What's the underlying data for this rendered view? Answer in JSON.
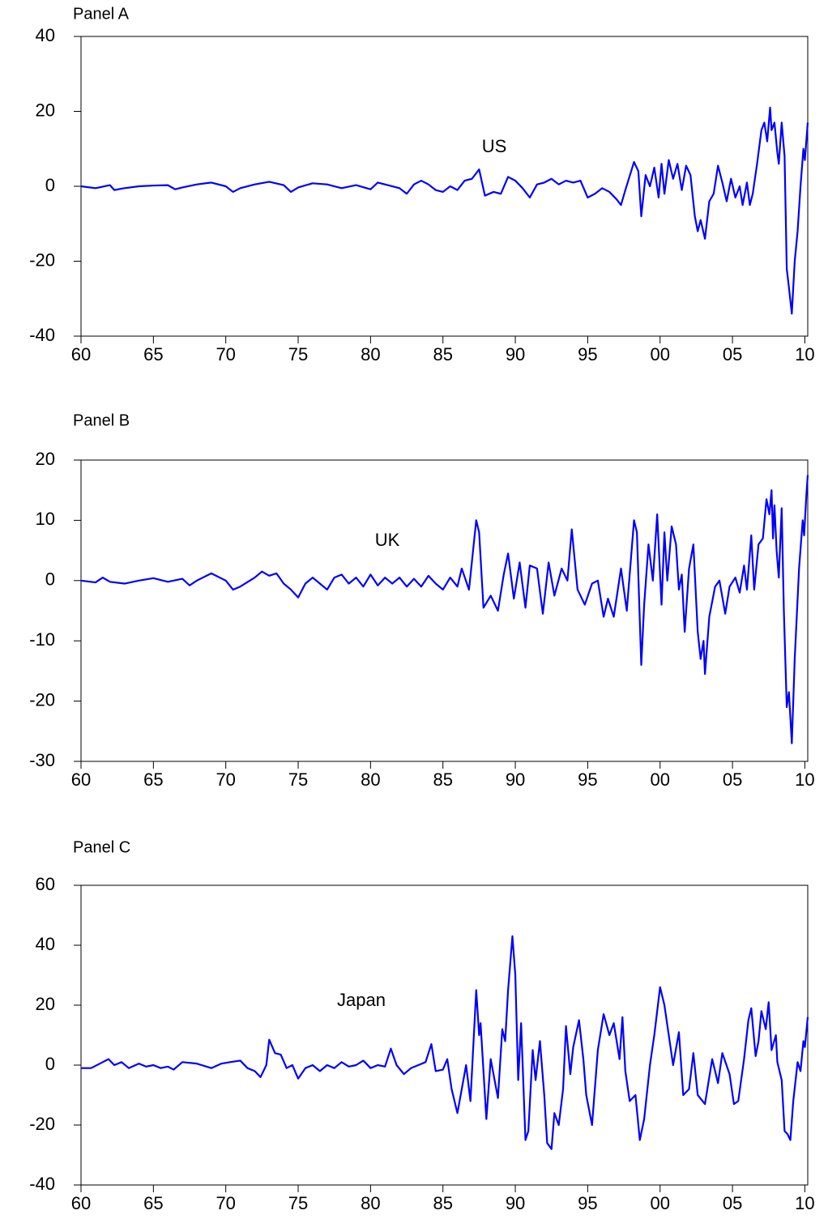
{
  "chart_data": [
    {
      "type": "line",
      "title": "Panel A",
      "annotation": "US",
      "color": "#0000ff",
      "x": [
        1960,
        1961,
        1962,
        1962.3,
        1963,
        1964,
        1965,
        1966,
        1966.5,
        1967,
        1968,
        1969,
        1970,
        1970.5,
        1971,
        1972,
        1973,
        1974,
        1974.5,
        1975,
        1976,
        1977,
        1978,
        1979,
        1980,
        1980.5,
        1981,
        1982,
        1982.5,
        1983,
        1983.5,
        1984,
        1984.5,
        1985,
        1985.5,
        1986,
        1986.5,
        1987,
        1987.5,
        1987.9,
        1988.5,
        1989,
        1989.5,
        1990,
        1990.5,
        1991,
        1991.5,
        1992,
        1992.5,
        1993,
        1993.5,
        1994,
        1994.5,
        1995,
        1995.5,
        1996,
        1996.5,
        1997,
        1997.3,
        1997.6,
        1998.2,
        1998.5,
        1998.7,
        1999,
        1999.3,
        1999.6,
        1999.9,
        2000.1,
        2000.3,
        2000.6,
        2000.9,
        2001.2,
        2001.5,
        2001.8,
        2002.1,
        2002.4,
        2002.6,
        2002.8,
        2003.1,
        2003.4,
        2003.7,
        2004,
        2004.3,
        2004.6,
        2004.9,
        2005.2,
        2005.5,
        2005.7,
        2006,
        2006.2,
        2006.4,
        2006.7,
        2007,
        2007.2,
        2007.4,
        2007.6,
        2007.7,
        2007.9,
        2008.1,
        2008.2,
        2008.4,
        2008.6,
        2008.75,
        2008.9,
        2009.1,
        2009.3,
        2009.5,
        2009.7,
        2009.9,
        2010,
        2010.2
      ],
      "values": [
        0,
        -0.5,
        0.3,
        -1,
        -0.5,
        0,
        0.2,
        0.3,
        -0.8,
        -0.3,
        0.5,
        1,
        0,
        -1.5,
        -0.5,
        0.5,
        1.2,
        0.3,
        -1.5,
        -0.3,
        0.8,
        0.5,
        -0.5,
        0.3,
        -0.8,
        1,
        0.5,
        -0.5,
        -2,
        0.5,
        1.5,
        0.5,
        -1,
        -1.5,
        0,
        -1,
        1.5,
        2,
        4.5,
        -2.5,
        -1.5,
        -2,
        2.5,
        1.5,
        -0.5,
        -3,
        0.5,
        1,
        2,
        0.5,
        1.5,
        1,
        1.5,
        -3,
        -2,
        -0.5,
        -1.5,
        -3.5,
        -5,
        -1,
        6.5,
        4,
        -8,
        3,
        0,
        5,
        -3,
        6,
        -2,
        7,
        2,
        6,
        -1,
        5.5,
        3,
        -8,
        -12,
        -9,
        -14,
        -4,
        -2,
        5.5,
        1,
        -4,
        2,
        -3,
        0,
        -5,
        1,
        -5,
        -2,
        6,
        15,
        17,
        12,
        21,
        15,
        17,
        9,
        6,
        17,
        8,
        -22,
        -27,
        -34,
        -20,
        -12,
        0,
        10,
        7,
        17
      ],
      "xlim": [
        1960,
        2010.2
      ],
      "ylim": [
        -40,
        40
      ],
      "yticks": [
        -40,
        -20,
        0,
        20,
        40
      ],
      "xticks": [
        {
          "value": 1960,
          "label": "60"
        },
        {
          "value": 1965,
          "label": "65"
        },
        {
          "value": 1970,
          "label": "70"
        },
        {
          "value": 1975,
          "label": "75"
        },
        {
          "value": 1980,
          "label": "80"
        },
        {
          "value": 1985,
          "label": "85"
        },
        {
          "value": 1990,
          "label": "90"
        },
        {
          "value": 1995,
          "label": "95"
        },
        {
          "value": 2000,
          "label": "00"
        },
        {
          "value": 2005,
          "label": "05"
        },
        {
          "value": 2010,
          "label": "10"
        }
      ]
    },
    {
      "type": "line",
      "title": "Panel B",
      "annotation": "UK",
      "color": "#0000ff",
      "x": [
        1960,
        1961,
        1961.5,
        1962,
        1963,
        1964,
        1965,
        1966,
        1967,
        1967.5,
        1968,
        1969,
        1970,
        1970.5,
        1971,
        1972,
        1972.5,
        1973,
        1973.5,
        1974,
        1974.5,
        1975,
        1975.5,
        1976,
        1976.5,
        1977,
        1977.5,
        1978,
        1978.5,
        1979,
        1979.5,
        1980,
        1980.5,
        1981,
        1981.5,
        1982,
        1982.5,
        1983,
        1983.5,
        1984,
        1984.5,
        1985,
        1985.5,
        1986,
        1986.3,
        1986.8,
        1987.3,
        1987.5,
        1987.8,
        1988.3,
        1988.8,
        1989.2,
        1989.5,
        1989.9,
        1990.3,
        1990.7,
        1991,
        1991.5,
        1991.9,
        1992.3,
        1992.7,
        1993.2,
        1993.6,
        1993.9,
        1994.3,
        1994.8,
        1995.3,
        1995.7,
        1996.1,
        1996.4,
        1996.8,
        1997.3,
        1997.7,
        1998.2,
        1998.4,
        1998.7,
        1998.9,
        1999.2,
        1999.5,
        1999.8,
        2000.1,
        2000.3,
        2000.5,
        2000.8,
        2001.1,
        2001.3,
        2001.5,
        2001.7,
        2002,
        2002.3,
        2002.6,
        2002.8,
        2003,
        2003.1,
        2003.4,
        2003.8,
        2004.1,
        2004.5,
        2004.8,
        2005.2,
        2005.5,
        2005.8,
        2006,
        2006.3,
        2006.5,
        2006.8,
        2007.1,
        2007.35,
        2007.55,
        2007.7,
        2007.8,
        2007.9,
        2008.05,
        2008.2,
        2008.4,
        2008.55,
        2008.75,
        2008.9,
        2009.1,
        2009.3,
        2009.6,
        2009.85,
        2009.95,
        2010.1,
        2010.2
      ],
      "values": [
        0,
        -0.3,
        0.5,
        -0.2,
        -0.5,
        0,
        0.4,
        -0.2,
        0.3,
        -0.8,
        0,
        1.2,
        0,
        -1.5,
        -1,
        0.5,
        1.5,
        0.8,
        1.2,
        -0.5,
        -1.5,
        -2.8,
        -0.5,
        0.5,
        -0.5,
        -1.5,
        0.5,
        1,
        -0.5,
        0.5,
        -1,
        1,
        -0.8,
        0.5,
        -0.5,
        0.5,
        -1,
        0.3,
        -1,
        0.8,
        -0.5,
        -1.5,
        0.5,
        -1,
        2,
        -1.5,
        10,
        8,
        -4.5,
        -2.5,
        -5,
        1,
        4.5,
        -3,
        3,
        -4.5,
        2.5,
        2,
        -5.5,
        3,
        -2.5,
        2,
        0,
        8.5,
        -1.5,
        -4,
        -0.5,
        0,
        -6,
        -3,
        -6,
        2,
        -5,
        10,
        8,
        -14,
        -4,
        6,
        0,
        11,
        -4,
        8,
        0,
        9,
        6,
        -1.5,
        1,
        -8.5,
        2,
        6,
        -8.5,
        -13,
        -10,
        -15.5,
        -6,
        -1,
        0,
        -5.5,
        -1,
        0.5,
        -2,
        2.5,
        -1.5,
        7.5,
        -1.5,
        6,
        7,
        13.5,
        11,
        15,
        7,
        12.5,
        5,
        0.5,
        12,
        -5,
        -21,
        -18.5,
        -27,
        -13,
        2,
        10,
        7.5,
        14,
        17.5
      ],
      "xlim": [
        1960,
        2010.2
      ],
      "ylim": [
        -30,
        20
      ],
      "yticks": [
        -30,
        -20,
        -10,
        0,
        10,
        20
      ],
      "xticks": [
        {
          "value": 1960,
          "label": "60"
        },
        {
          "value": 1965,
          "label": "65"
        },
        {
          "value": 1970,
          "label": "70"
        },
        {
          "value": 1975,
          "label": "75"
        },
        {
          "value": 1980,
          "label": "80"
        },
        {
          "value": 1985,
          "label": "85"
        },
        {
          "value": 1990,
          "label": "90"
        },
        {
          "value": 1995,
          "label": "95"
        },
        {
          "value": 2000,
          "label": "00"
        },
        {
          "value": 2005,
          "label": "05"
        },
        {
          "value": 2010,
          "label": "10"
        }
      ]
    },
    {
      "type": "line",
      "title": "Panel C",
      "annotation": "Japan",
      "color": "#0000ff",
      "x": [
        1960,
        1960.7,
        1961.5,
        1961.9,
        1962.3,
        1962.8,
        1963.3,
        1964,
        1964.5,
        1965,
        1965.5,
        1966,
        1966.4,
        1967,
        1968,
        1969,
        1969.7,
        1970.3,
        1971,
        1971.5,
        1972,
        1972.4,
        1972.8,
        1973,
        1973.4,
        1973.8,
        1974.2,
        1974.6,
        1975,
        1975.5,
        1976,
        1976.5,
        1977,
        1977.5,
        1978,
        1978.5,
        1979,
        1979.5,
        1980,
        1980.5,
        1981,
        1981.4,
        1981.8,
        1982.3,
        1982.8,
        1983.3,
        1983.8,
        1984.2,
        1984.5,
        1985,
        1985.3,
        1985.6,
        1986,
        1986.6,
        1986.9,
        1987.3,
        1987.5,
        1987.6,
        1988,
        1988.3,
        1988.8,
        1989.1,
        1989.3,
        1989.5,
        1989.8,
        1990,
        1990.2,
        1990.4,
        1990.7,
        1990.9,
        1991.2,
        1991.4,
        1991.7,
        1992,
        1992.2,
        1992.5,
        1992.7,
        1993,
        1993.3,
        1993.5,
        1993.8,
        1994,
        1994.4,
        1994.7,
        1994.9,
        1995.3,
        1995.7,
        1996.1,
        1996.5,
        1996.8,
        1997.2,
        1997.4,
        1997.6,
        1997.9,
        1998.3,
        1998.6,
        1998.9,
        1999.3,
        1999.6,
        2000,
        2000.3,
        2000.6,
        2000.9,
        2001.3,
        2001.6,
        2002,
        2002.3,
        2002.6,
        2003.1,
        2003.6,
        2004,
        2004.3,
        2004.8,
        2005.1,
        2005.4,
        2005.8,
        2006.1,
        2006.3,
        2006.6,
        2006.8,
        2007,
        2007.3,
        2007.5,
        2007.7,
        2008,
        2008.1,
        2008.4,
        2008.6,
        2008.8,
        2009,
        2009.2,
        2009.5,
        2009.7,
        2009.9,
        2010,
        2010.2
      ],
      "values": [
        -1,
        -1,
        1,
        2,
        0,
        1,
        -1,
        0.5,
        -0.5,
        0,
        -1,
        -0.5,
        -1.5,
        1,
        0.5,
        -1,
        0.5,
        1,
        1.5,
        -1,
        -2,
        -4,
        0,
        8.5,
        4,
        3.5,
        -1,
        0,
        -4.5,
        -1,
        0,
        -2,
        0,
        -1,
        1,
        -0.5,
        0,
        1.5,
        -1,
        0,
        -0.5,
        5.5,
        0,
        -3,
        -1,
        0,
        1,
        7,
        -2,
        -1.5,
        2,
        -8,
        -16,
        0,
        -12,
        25,
        10,
        14,
        -18,
        2,
        -11,
        12,
        8,
        25,
        43,
        30,
        -5,
        14,
        -25,
        -22,
        5,
        -5,
        8,
        -10,
        -26,
        -28,
        -16,
        -20,
        -8,
        13,
        -3,
        6,
        15,
        2,
        -10,
        -20,
        5,
        17,
        10,
        14,
        2,
        16,
        -2,
        -12,
        -10,
        -25,
        -18,
        0,
        10,
        26,
        20,
        10,
        0,
        11,
        -10,
        -8,
        4,
        -10,
        -13,
        2,
        -6,
        4,
        -3,
        -13,
        -12,
        2,
        15,
        19,
        3,
        8,
        18,
        12,
        21,
        5,
        10,
        1,
        -5,
        -22,
        -23,
        -25,
        -12,
        1,
        -2,
        8,
        6,
        16
      ],
      "xlim": [
        1960,
        2010.2
      ],
      "ylim": [
        -40,
        60
      ],
      "yticks": [
        -40,
        -20,
        0,
        20,
        40,
        60
      ],
      "xticks": [
        {
          "value": 1960,
          "label": "60"
        },
        {
          "value": 1965,
          "label": "65"
        },
        {
          "value": 1970,
          "label": "70"
        },
        {
          "value": 1975,
          "label": "75"
        },
        {
          "value": 1980,
          "label": "80"
        },
        {
          "value": 1985,
          "label": "85"
        },
        {
          "value": 1990,
          "label": "90"
        },
        {
          "value": 1995,
          "label": "95"
        },
        {
          "value": 2000,
          "label": "00"
        },
        {
          "value": 2005,
          "label": "05"
        },
        {
          "value": 2010,
          "label": "10"
        }
      ]
    }
  ]
}
